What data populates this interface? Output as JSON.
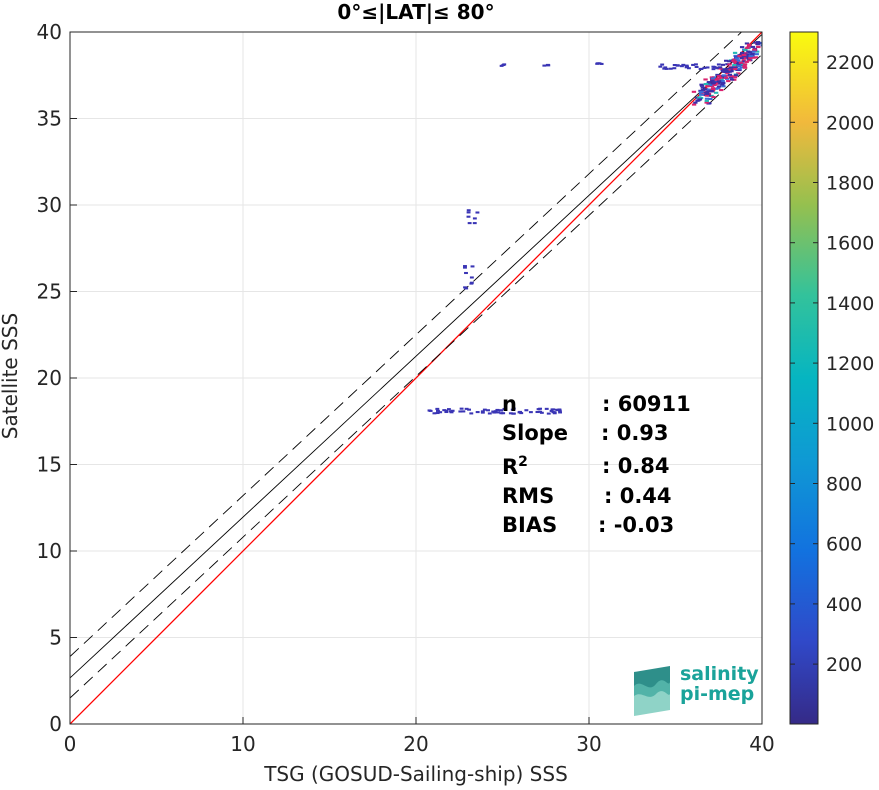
{
  "chart_data": {
    "type": "heatmap",
    "title": "0°≤|LAT|≤ 80°",
    "xlabel": "TSG (GOSUD-Sailing-ship) SSS",
    "ylabel": "Satellite SSS",
    "xlim": [
      0,
      40
    ],
    "ylim": [
      0,
      40
    ],
    "xticks": [
      "0",
      "10",
      "20",
      "30",
      "40"
    ],
    "yticks": [
      "0",
      "5",
      "10",
      "15",
      "20",
      "25",
      "30",
      "35",
      "40"
    ],
    "grid": true,
    "colorbar": {
      "range": [
        1,
        2300
      ],
      "ticks": [
        "200",
        "400",
        "600",
        "800",
        "1000",
        "1200",
        "1400",
        "1600",
        "1800",
        "2000",
        "2200"
      ],
      "colormap": "parula"
    },
    "lines": [
      {
        "role": "one-to-one",
        "color": "#ff0000",
        "slope": 1.0,
        "intercept": 0.0,
        "style": "solid"
      },
      {
        "role": "regression",
        "color": "#000000",
        "slope": 0.93,
        "intercept": 2.66,
        "style": "solid"
      },
      {
        "role": "regression+",
        "color": "#000000",
        "slope": 0.93,
        "intercept": 3.9,
        "style": "dashed"
      },
      {
        "role": "regression-",
        "color": "#000000",
        "slope": 0.93,
        "intercept": 1.5,
        "style": "dashed"
      }
    ],
    "clusters": [
      {
        "x": [
          36.3,
          39.6
        ],
        "y": [
          36.2,
          39.3
        ],
        "density": "high"
      },
      {
        "x": [
          34.0,
          37.5
        ],
        "y": [
          37.9,
          38.2
        ],
        "density": "low"
      },
      {
        "x": [
          20.5,
          28.5
        ],
        "y": [
          18.0,
          18.3
        ],
        "density": "low"
      },
      {
        "x": [
          22.7,
          23.2
        ],
        "y": [
          25.2,
          26.9
        ],
        "density": "low"
      },
      {
        "x": [
          22.9,
          23.5
        ],
        "y": [
          29.0,
          29.8
        ],
        "density": "low"
      },
      {
        "x": [
          24.8,
          25.0
        ],
        "y": [
          38.1,
          38.2
        ],
        "density": "low"
      },
      {
        "x": [
          27.3,
          27.8
        ],
        "y": [
          38.1,
          38.2
        ],
        "density": "low"
      },
      {
        "x": [
          30.3,
          30.8
        ],
        "y": [
          38.2,
          38.3
        ],
        "density": "low"
      }
    ]
  },
  "stats": {
    "n_label": "n",
    "n_value": ": 60911",
    "slope_label": "Slope",
    "slope_value": ": 0.93",
    "r2_label": "R",
    "r2_sup": "2",
    "r2_value": ": 0.84",
    "rms_label": "RMS",
    "rms_value": ": 0.44",
    "bias_label": "BIAS",
    "bias_value": ": -0.03"
  },
  "logo": {
    "line1": "salinity",
    "line2": "pi-mep"
  }
}
